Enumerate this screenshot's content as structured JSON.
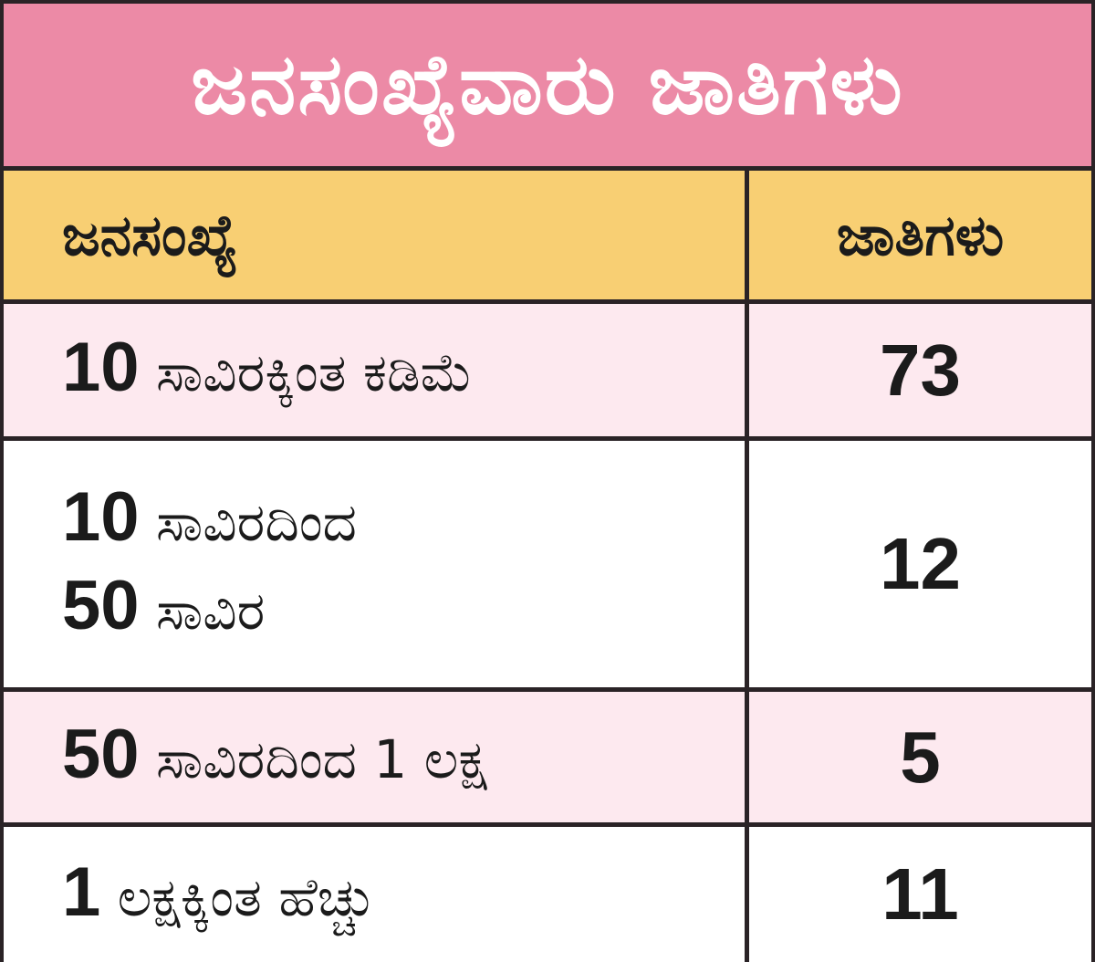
{
  "title": "ಜನಸಂಖ್ಯೆವಾರು ಜಾತಿಗಳು",
  "table": {
    "headers": {
      "population": "ಜನಸಂಖ್ಯೆ",
      "castes": "ಜಾತಿಗಳು"
    },
    "rows": [
      {
        "lines": [
          {
            "num": "10",
            "text": " ಸಾವಿರಕ್ಕಿಂತ ಕಡಿಮೆ"
          }
        ],
        "count": "73"
      },
      {
        "lines": [
          {
            "num": "10",
            "text": " ಸಾವಿರದಿಂದ"
          },
          {
            "num": "50",
            "text": " ಸಾವಿರ"
          }
        ],
        "count": "12"
      },
      {
        "lines": [
          {
            "num": "50",
            "text": " ಸಾವಿರದಿಂದ 1 ಲಕ್ಷ"
          }
        ],
        "count": "5"
      },
      {
        "lines": [
          {
            "num": "1",
            "text": " ಲಕ್ಷಕ್ಕಿಂತ ಹೆಚ್ಚು"
          }
        ],
        "count": "11"
      }
    ]
  },
  "colors": {
    "title_bg": "#ec8aa6",
    "header_bg": "#f8cf73",
    "row_alt_bg": "#fde9ef",
    "border": "#2a2326"
  }
}
